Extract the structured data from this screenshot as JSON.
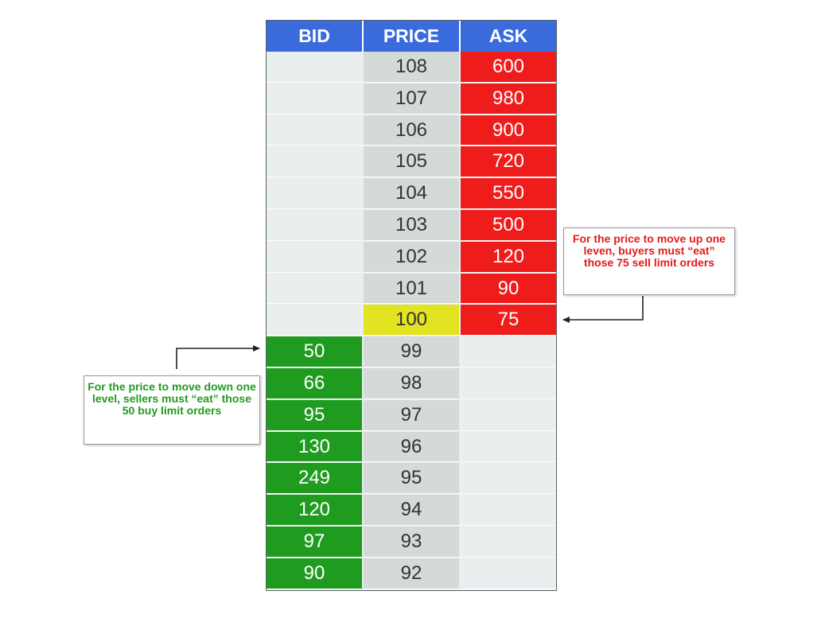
{
  "headers": {
    "bid": "BID",
    "price": "PRICE",
    "ask": "ASK"
  },
  "rows": [
    {
      "bid": "",
      "price": "108",
      "ask": "600"
    },
    {
      "bid": "",
      "price": "107",
      "ask": "980"
    },
    {
      "bid": "",
      "price": "106",
      "ask": "900"
    },
    {
      "bid": "",
      "price": "105",
      "ask": "720"
    },
    {
      "bid": "",
      "price": "104",
      "ask": "550"
    },
    {
      "bid": "",
      "price": "103",
      "ask": "500"
    },
    {
      "bid": "",
      "price": "102",
      "ask": "120"
    },
    {
      "bid": "",
      "price": "101",
      "ask": "90"
    },
    {
      "bid": "",
      "price": "100",
      "ask": "75"
    },
    {
      "bid": "50",
      "price": "99",
      "ask": ""
    },
    {
      "bid": "66",
      "price": "98",
      "ask": ""
    },
    {
      "bid": "95",
      "price": "97",
      "ask": ""
    },
    {
      "bid": "130",
      "price": "96",
      "ask": ""
    },
    {
      "bid": "249",
      "price": "95",
      "ask": ""
    },
    {
      "bid": "120",
      "price": "94",
      "ask": ""
    },
    {
      "bid": "97",
      "price": "93",
      "ask": ""
    },
    {
      "bid": "90",
      "price": "92",
      "ask": ""
    }
  ],
  "current_price": "100",
  "callouts": {
    "sell": "For the price to move up one leven, buyers must “eat” those 75 sell limit orders",
    "buy": "For the price to move down one level, sellers must “eat” those 50 buy limit orders"
  },
  "colors": {
    "header": "#3a6bdc",
    "bid": "#1f9c1f",
    "ask": "#ef1c1c",
    "current": "#e2e321",
    "price": "#d3dad8",
    "empty": "#e9eeee"
  }
}
